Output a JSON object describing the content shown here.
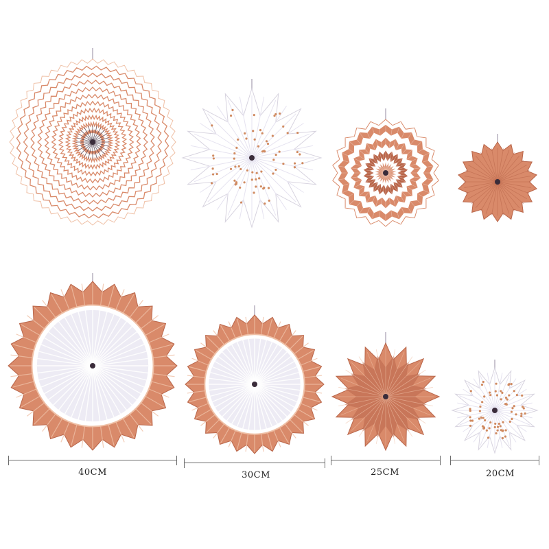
{
  "colors": {
    "rose_gold": "#d98a6a",
    "rose_gold_dark": "#b9664a",
    "rose_gold_light": "#efc0a6",
    "white": "#ffffff",
    "pale_lavender": "#e6e3f0",
    "dot": "#d08a60"
  },
  "fans": [
    {
      "size_group": "40CM",
      "style": "white-with-rose-gold-wavy-rings"
    },
    {
      "size_group": "30CM",
      "style": "white-star-with-rose-gold-dots"
    },
    {
      "size_group": "25CM",
      "style": "rose-gold-white-stripes"
    },
    {
      "size_group": "20CM",
      "style": "solid-rose-gold"
    },
    {
      "size_group": "40CM",
      "style": "white-center-rose-gold-foil-rim"
    },
    {
      "size_group": "30CM",
      "style": "white-center-rose-gold-foil-rim"
    },
    {
      "size_group": "25CM",
      "style": "solid-rose-gold-foil-star"
    },
    {
      "size_group": "20CM",
      "style": "white-star-with-rose-gold-dots"
    }
  ],
  "size_labels": [
    "40CM",
    "30CM",
    "25CM",
    "20CM"
  ]
}
